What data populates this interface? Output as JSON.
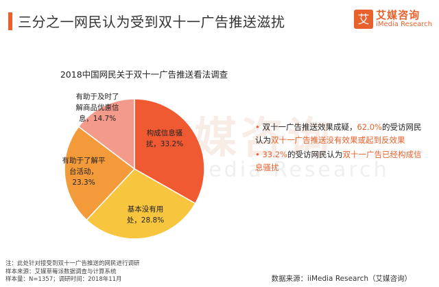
{
  "header": {
    "title": "三分之一网民认为受到双十一广告推送滋扰",
    "brand_cn": "艾媒咨询",
    "brand_en": "iMedia Research",
    "brand_icon_text": "艾",
    "accent_color": "#e8602c"
  },
  "watermark": {
    "cn": "艾媒咨询",
    "en": "iMedia Research"
  },
  "chart_data": {
    "type": "pie",
    "title": "2018中国网民关于双十一广告推送看法调查",
    "slices": [
      {
        "label": "构成信息骚扰",
        "value": 33.2,
        "value_text": "33.2%",
        "color": "#f05a32"
      },
      {
        "label": "基本没有用处",
        "value": 28.8,
        "value_text": "28.8%",
        "color": "#f7c63e"
      },
      {
        "label": "有助于了解平台活动",
        "value": 23.3,
        "value_text": "23.3%",
        "color": "#f39a3a"
      },
      {
        "label": "有助于及时了解商品优惠信息",
        "value": 14.7,
        "value_text": "14.7%",
        "color": "#f39a8a"
      }
    ]
  },
  "slice_label_lines": [
    [
      "构成信息骚",
      "扰，33.2%"
    ],
    [
      "基本没有用",
      "处，28.8%"
    ],
    [
      "有助于了解平",
      "台活动，",
      "23.3%"
    ],
    [
      "有助于及时了",
      "解商品优惠信",
      "息，14.7%"
    ]
  ],
  "annotations": [
    {
      "bullet": "•",
      "p1": "双十一广告推送效果成疑，",
      "p2": "62.0%",
      "p3": "的受访网民认为",
      "p4": "双十一广告推送没有效果或起到反效果"
    },
    {
      "bullet": "•",
      "p1": "33.2%",
      "p2": "的受访网民认为",
      "p3": "双十一广告已经构成信息骚扰"
    }
  ],
  "footer": {
    "note": "注：此处针对接受到双十一广告推送的网民进行调研",
    "sample_source": "样本来源：艾媒草莓派数据调查与计算系统",
    "sample_size": "样本量：N=1357；调研时间：2018年11月",
    "data_source": "数据来源：iiMedia Research（艾媒咨询）"
  }
}
